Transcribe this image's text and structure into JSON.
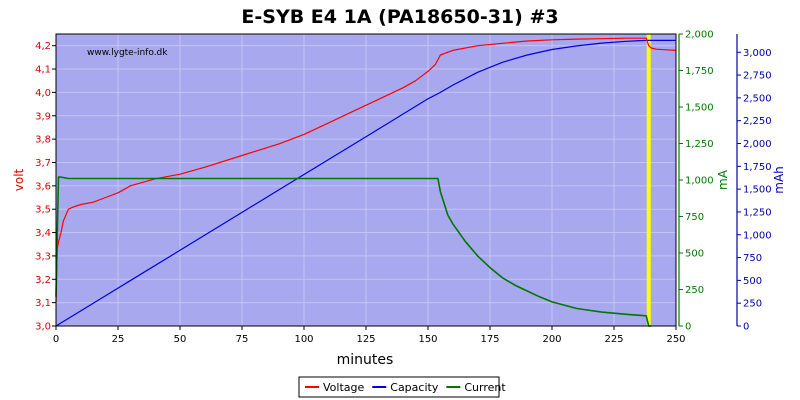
{
  "chart_data": {
    "type": "line",
    "title": "E-SYB E4 1A (PA18650-31) #3",
    "watermark": "www.lygte-info.dk",
    "xlabel": "minutes",
    "xlim": [
      0,
      250
    ],
    "x_ticks": [
      0,
      25,
      50,
      75,
      100,
      125,
      150,
      175,
      200,
      225,
      250
    ],
    "axes": {
      "left": {
        "label": "volt",
        "color": "#dd0000",
        "lim": [
          3.0,
          4.25
        ],
        "ticks": [
          3.0,
          3.1,
          3.2,
          3.3,
          3.4,
          3.5,
          3.6,
          3.7,
          3.8,
          3.9,
          4.0,
          4.1,
          4.2
        ],
        "tick_labels": [
          "3,0",
          "3,1",
          "3,2",
          "3,3",
          "3,4",
          "3,5",
          "3,6",
          "3,7",
          "3,8",
          "3,9",
          "4,0",
          "4,1",
          "4,2"
        ]
      },
      "right1": {
        "label": "mA",
        "color": "#007700",
        "lim": [
          0,
          2000
        ],
        "ticks": [
          0,
          250,
          500,
          750,
          1000,
          1250,
          1500,
          1750,
          2000
        ],
        "tick_labels": [
          "0",
          "250",
          "500",
          "750",
          "1,000",
          "1,250",
          "1,500",
          "1,750",
          "2,000"
        ]
      },
      "right2": {
        "label": "mAh",
        "color": "#0000aa",
        "lim": [
          0,
          3200
        ],
        "ticks": [
          0,
          250,
          500,
          750,
          1000,
          1250,
          1500,
          1750,
          2000,
          2250,
          2500,
          2750,
          3000
        ],
        "tick_labels": [
          "0",
          "250",
          "500",
          "750",
          "1,000",
          "1,250",
          "1,500",
          "1,750",
          "2,000",
          "2,250",
          "2,500",
          "2,750",
          "3,000"
        ]
      }
    },
    "background": "#a8a8ee",
    "grid": true,
    "legend_position": "bottom",
    "series": [
      {
        "name": "Voltage",
        "color": "#ff0000",
        "axis": "left",
        "x": [
          0,
          0.5,
          1,
          2,
          3,
          5,
          7,
          10,
          15,
          20,
          25,
          30,
          40,
          50,
          60,
          75,
          90,
          100,
          110,
          120,
          130,
          140,
          145,
          150,
          153,
          155,
          160,
          170,
          180,
          190,
          200,
          210,
          220,
          230,
          237,
          238,
          239,
          240,
          242,
          245,
          250
        ],
        "y": [
          3.1,
          3.33,
          3.36,
          3.4,
          3.45,
          3.5,
          3.51,
          3.52,
          3.53,
          3.55,
          3.57,
          3.6,
          3.63,
          3.65,
          3.68,
          3.73,
          3.78,
          3.82,
          3.87,
          3.92,
          3.97,
          4.02,
          4.05,
          4.09,
          4.12,
          4.16,
          4.18,
          4.2,
          4.21,
          4.22,
          4.225,
          4.228,
          4.23,
          4.232,
          4.232,
          4.232,
          4.2,
          4.19,
          4.185,
          4.183,
          4.18
        ]
      },
      {
        "name": "Capacity",
        "color": "#0000dd",
        "axis": "right2",
        "x": [
          0,
          25,
          50,
          75,
          100,
          125,
          150,
          155,
          160,
          170,
          180,
          190,
          200,
          210,
          220,
          230,
          238,
          240,
          250
        ],
        "y": [
          0,
          415,
          830,
          1245,
          1660,
          2075,
          2490,
          2560,
          2640,
          2780,
          2890,
          2970,
          3030,
          3070,
          3100,
          3120,
          3130,
          3130,
          3130
        ]
      },
      {
        "name": "Current",
        "color": "#007700",
        "axis": "right1",
        "x": [
          0,
          0.5,
          1,
          2,
          5,
          10,
          25,
          50,
          75,
          100,
          125,
          150,
          154,
          155,
          158,
          160,
          165,
          170,
          175,
          180,
          185,
          190,
          195,
          200,
          210,
          220,
          230,
          238,
          239,
          240
        ],
        "y": [
          200,
          600,
          1020,
          1020,
          1010,
          1010,
          1010,
          1010,
          1010,
          1010,
          1010,
          1010,
          1010,
          920,
          760,
          700,
          580,
          480,
          400,
          330,
          280,
          240,
          200,
          165,
          120,
          95,
          80,
          70,
          0,
          0
        ]
      }
    ],
    "markers": [
      {
        "type": "vline",
        "x": 239,
        "color": "#ffff00"
      }
    ]
  }
}
